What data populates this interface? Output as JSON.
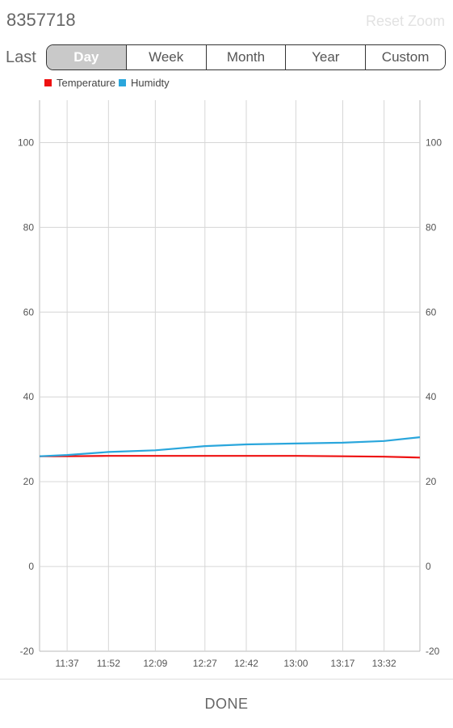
{
  "header": {
    "device_id": "8357718",
    "reset_zoom_label": "Reset Zoom"
  },
  "range": {
    "label": "Last",
    "options": [
      "Day",
      "Week",
      "Month",
      "Year",
      "Custom"
    ],
    "selected": "Day"
  },
  "colors": {
    "temperature": "#ee1111",
    "humidity": "#2aa6dc",
    "grid": "#d6d6d6",
    "active_tab": "#c9c9c9"
  },
  "chart_data": {
    "type": "line",
    "legend_position": "top-left",
    "grid": true,
    "x_tick_labels": [
      "11:37",
      "11:52",
      "12:09",
      "12:27",
      "12:42",
      "13:00",
      "13:17",
      "13:32"
    ],
    "y_left": {
      "ylim": [
        -20,
        110
      ],
      "ticks": [
        -20,
        0,
        20,
        40,
        60,
        80,
        100
      ]
    },
    "y_right": {
      "ylim": [
        -20,
        110
      ],
      "ticks": [
        -20,
        0,
        20,
        40,
        60,
        80,
        100
      ]
    },
    "x": [
      "11:27",
      "11:37",
      "11:52",
      "12:09",
      "12:27",
      "12:42",
      "13:00",
      "13:17",
      "13:32",
      "13:45"
    ],
    "series": [
      {
        "name": "Temperature",
        "axis": "left",
        "values": [
          26.0,
          26.0,
          26.1,
          26.1,
          26.1,
          26.1,
          26.1,
          26.0,
          25.9,
          25.7
        ]
      },
      {
        "name": "Humidty",
        "axis": "right",
        "values": [
          26.0,
          26.3,
          27.0,
          27.4,
          28.4,
          28.8,
          29.0,
          29.2,
          29.6,
          30.5
        ]
      }
    ]
  },
  "footer": {
    "done_label": "DONE"
  }
}
